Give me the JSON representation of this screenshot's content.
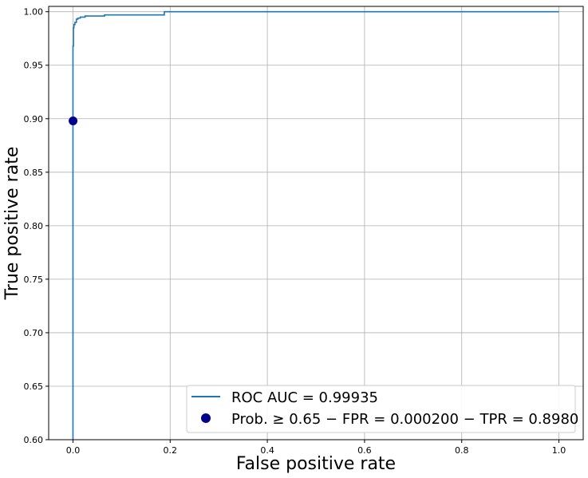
{
  "chart_data": {
    "type": "line",
    "title": "",
    "xlabel": "False positive rate",
    "ylabel": "True positive rate",
    "xlim": [
      -0.05,
      1.05
    ],
    "ylim": [
      0.6,
      1.005
    ],
    "grid": true,
    "legend_position": "bottom-right",
    "x_ticks": [
      "0.0",
      "0.2",
      "0.4",
      "0.6",
      "0.8",
      "1.0"
    ],
    "y_ticks": [
      "0.60",
      "0.65",
      "0.70",
      "0.75",
      "0.80",
      "0.85",
      "0.90",
      "0.95",
      "1.00"
    ],
    "series": [
      {
        "name": "ROC AUC = 0.99935",
        "kind": "line",
        "color": "#1f77b4",
        "x": [
          0.0,
          0.0,
          0.001,
          0.001,
          0.002,
          0.002,
          0.004,
          0.004,
          0.007,
          0.007,
          0.01,
          0.01,
          0.015,
          0.015,
          0.025,
          0.025,
          0.065,
          0.065,
          0.188,
          0.188,
          1.0
        ],
        "y": [
          0.6,
          0.968,
          0.968,
          0.985,
          0.985,
          0.988,
          0.988,
          0.99,
          0.99,
          0.993,
          0.993,
          0.994,
          0.994,
          0.995,
          0.995,
          0.996,
          0.996,
          0.997,
          0.997,
          1.0,
          1.0
        ]
      },
      {
        "name": "Prob. ≥ 0.65 − FPR = 0.000200 − TPR = 0.8980",
        "kind": "point",
        "color": "#00008b",
        "x": [
          0.0002
        ],
        "y": [
          0.898
        ]
      }
    ]
  }
}
